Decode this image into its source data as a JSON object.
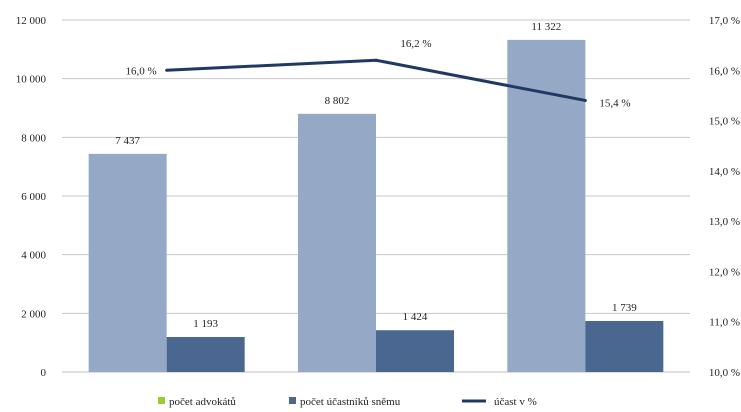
{
  "chart_data": {
    "type": "bar",
    "categories": [
      "",
      "",
      ""
    ],
    "series": [
      {
        "name": "počet advokátů",
        "type": "bar",
        "axis": "left",
        "color": "#95a8c6",
        "values": [
          7437,
          8802,
          11322
        ],
        "labels": [
          "7 437",
          "8 802",
          "11 322"
        ]
      },
      {
        "name": "počet účastníků sněmu",
        "type": "bar",
        "axis": "left",
        "color": "#4a6790",
        "values": [
          1193,
          1424,
          1739
        ],
        "labels": [
          "1 193",
          "1 424",
          "1 739"
        ]
      },
      {
        "name": "účast v %",
        "type": "line",
        "axis": "right",
        "color": "#1f3864",
        "values": [
          16.0,
          16.2,
          15.4
        ],
        "labels": [
          "16,0 %",
          "16,2 %",
          "15,4 %"
        ]
      }
    ],
    "y_left": {
      "min": 0,
      "max": 12000,
      "step": 2000,
      "tick_labels": [
        "0",
        "2 000",
        "4 000",
        "6 000",
        "8 000",
        "10 000",
        "12 000"
      ]
    },
    "y_right": {
      "min": 10.0,
      "max": 17.0,
      "step": 1.0,
      "tick_labels": [
        "10,0 %",
        "11,0 %",
        "12,0 %",
        "13,0 %",
        "14,0 %",
        "15,0 %",
        "16,0 %",
        "17,0 %"
      ]
    },
    "legend": {
      "position": "bottom",
      "swatch_color_first": "#9acd32"
    },
    "grid": true
  }
}
